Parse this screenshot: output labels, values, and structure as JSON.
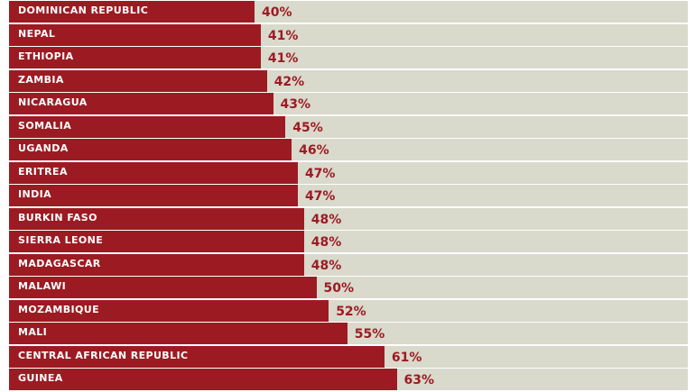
{
  "chart_data": {
    "type": "bar",
    "orientation": "horizontal",
    "categories": [
      "DOMINICAN REPUBLIC",
      "NEPAL",
      "ETHIOPIA",
      "ZAMBIA",
      "NICARAGUA",
      "SOMALIA",
      "UGANDA",
      "ERITREA",
      "INDIA",
      "BURKIN FASO",
      "SIERRA LEONE",
      "MADAGASCAR",
      "MALAWI",
      "MOZAMBIQUE",
      "MALI",
      "CENTRAL AFRICAN REPUBLIC",
      "GUINEA"
    ],
    "values": [
      40,
      41,
      41,
      42,
      43,
      45,
      46,
      47,
      47,
      48,
      48,
      48,
      50,
      52,
      55,
      61,
      63
    ],
    "value_labels": [
      "40%",
      "41%",
      "41%",
      "42%",
      "43%",
      "45%",
      "46%",
      "47%",
      "47%",
      "48%",
      "48%",
      "48%",
      "50%",
      "52%",
      "55%",
      "61%",
      "63%"
    ],
    "title": "",
    "xlabel": "",
    "ylabel": "",
    "colors": {
      "bar": "#9c1b22",
      "track": "#d9d9cc",
      "label": "#ffffff",
      "value": "#9c1b22"
    }
  }
}
